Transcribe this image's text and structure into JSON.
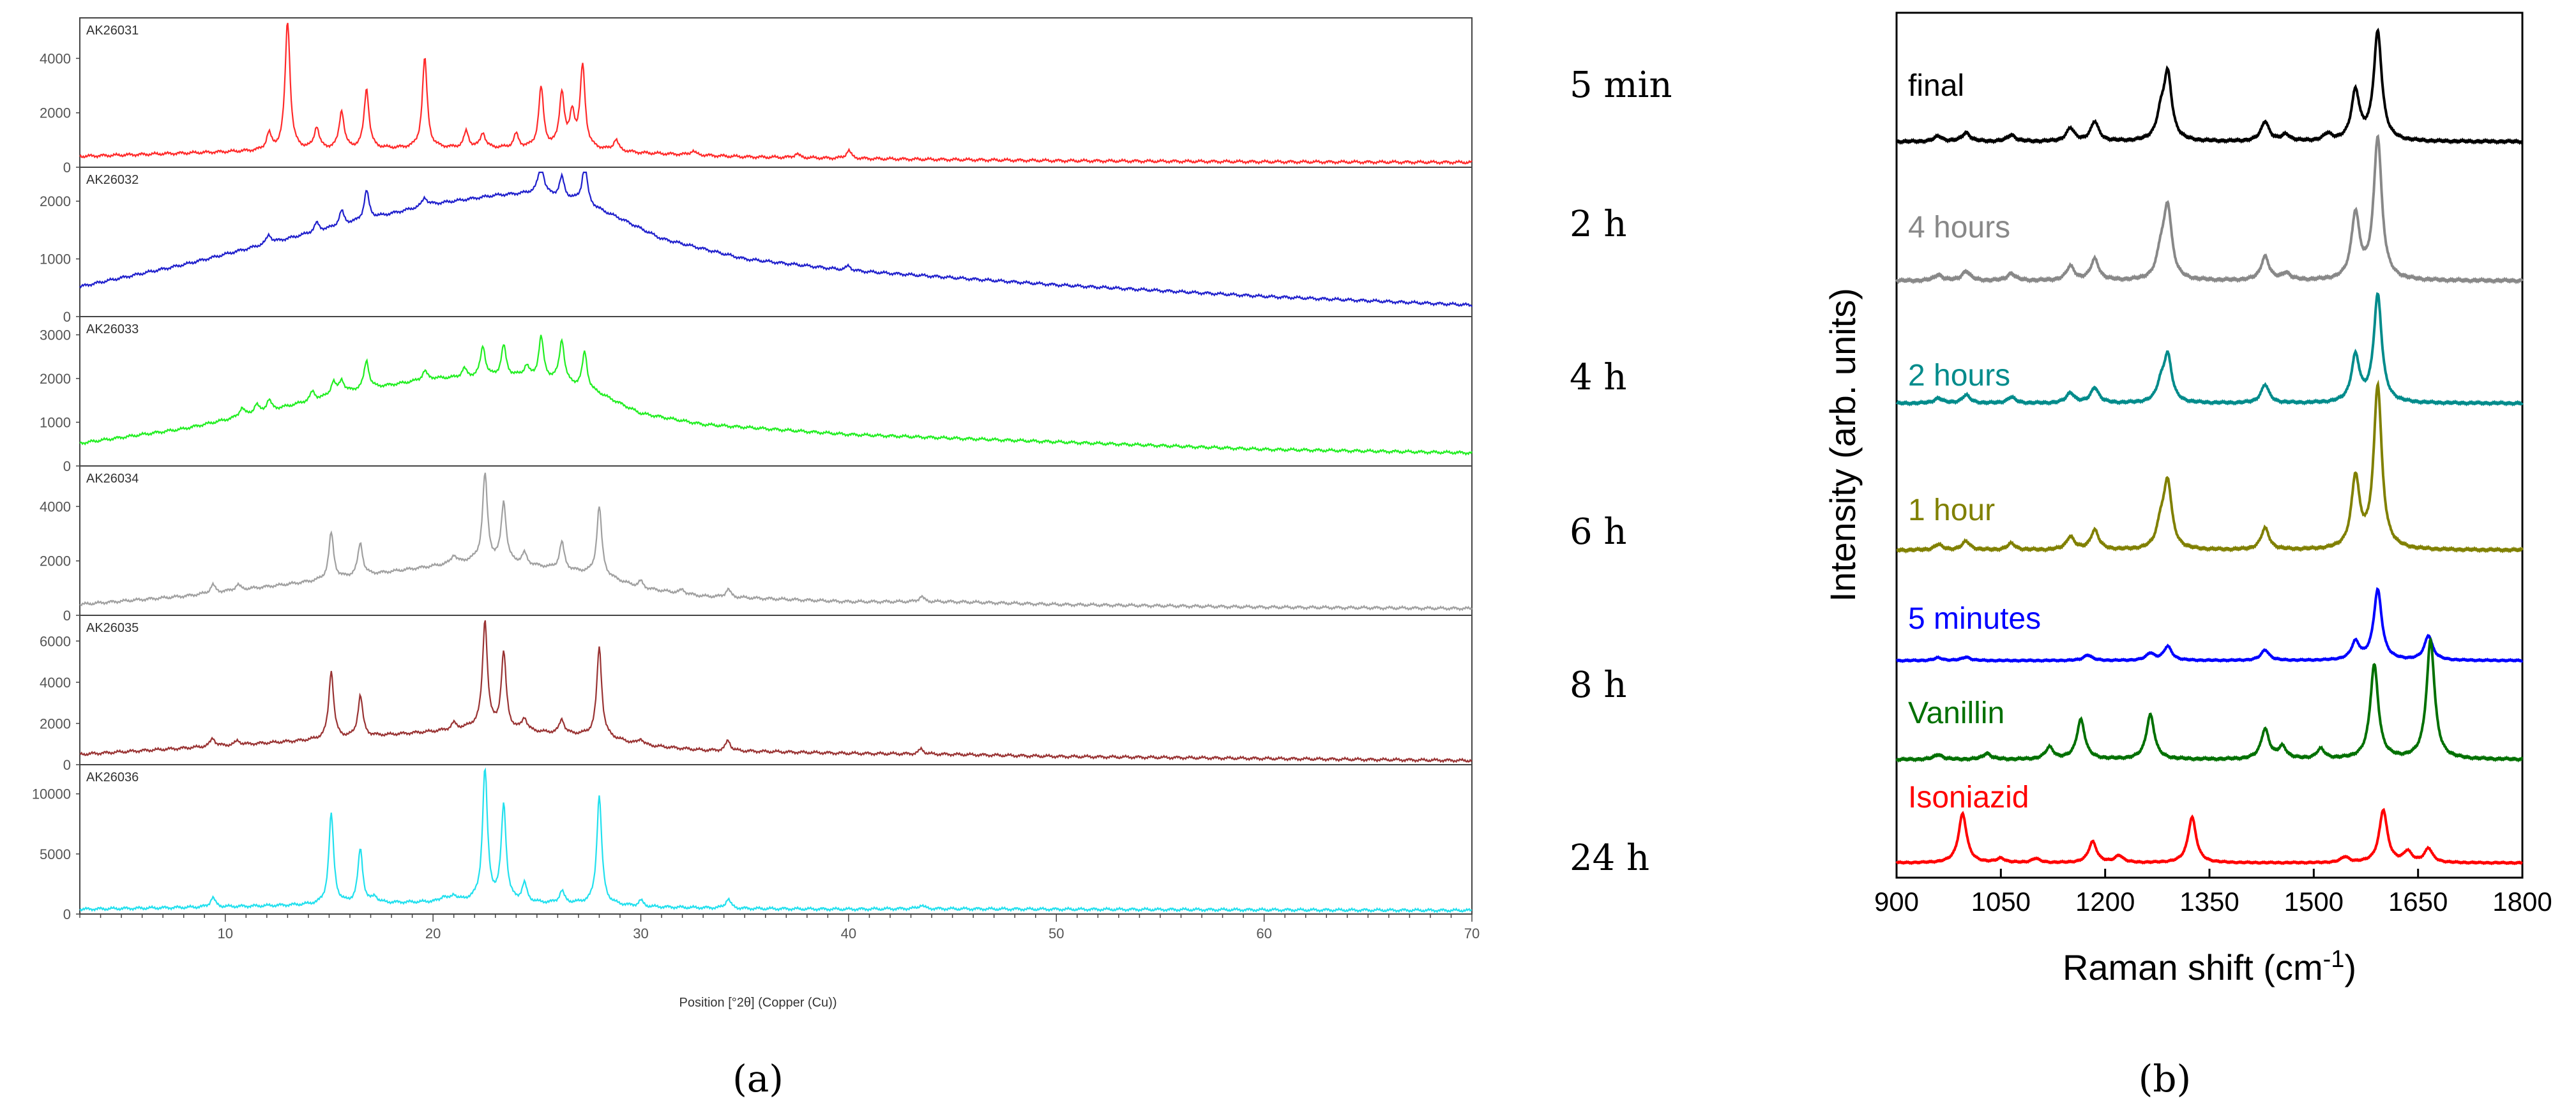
{
  "caption_a": "(a)",
  "caption_b": "(b)",
  "chart_data": [
    {
      "type": "line",
      "title": "",
      "xlabel": "Position [°2θ] (Copper (Cu))",
      "xlim": [
        3,
        70
      ],
      "xticks": [
        10,
        20,
        30,
        40,
        50,
        60,
        70
      ],
      "panels": [
        {
          "name": "AK26031",
          "time_label": "5 min",
          "color": "#ff2a2a",
          "ylim": [
            0,
            5300
          ],
          "yticks": [
            0,
            2000,
            4000
          ],
          "baseline": [
            [
              3,
              400
            ],
            [
              10,
              560
            ],
            [
              14,
              640
            ],
            [
              20,
              700
            ],
            [
              24,
              700
            ],
            [
              27,
              700
            ],
            [
              30,
              520
            ],
            [
              35,
              380
            ],
            [
              40,
              320
            ],
            [
              50,
              240
            ],
            [
              60,
              200
            ],
            [
              70,
              180
            ]
          ],
          "peaks": [
            [
              13.0,
              4800
            ],
            [
              19.6,
              3300
            ],
            [
              27.2,
              3000
            ],
            [
              25.2,
              2200
            ],
            [
              26.2,
              2000
            ],
            [
              16.8,
              2200
            ],
            [
              15.6,
              1400
            ],
            [
              14.4,
              800
            ],
            [
              12.1,
              600
            ],
            [
              21.6,
              600
            ],
            [
              22.4,
              550
            ],
            [
              26.7,
              1200
            ],
            [
              24.0,
              500
            ],
            [
              28.8,
              400
            ],
            [
              40.0,
              300
            ],
            [
              37.5,
              150
            ],
            [
              32.5,
              150
            ]
          ]
        },
        {
          "name": "AK26032",
          "time_label": "2 h",
          "color": "#2020cc",
          "ylim": [
            0,
            2500
          ],
          "yticks": [
            0,
            1000,
            2000
          ],
          "baseline": [
            [
              3,
              520
            ],
            [
              8,
              900
            ],
            [
              13,
              1350
            ],
            [
              17,
              1700
            ],
            [
              20,
              1950
            ],
            [
              23,
              2100
            ],
            [
              25,
              2150
            ],
            [
              27,
              2000
            ],
            [
              29,
              1700
            ],
            [
              31,
              1350
            ],
            [
              35,
              1000
            ],
            [
              40,
              800
            ],
            [
              50,
              550
            ],
            [
              60,
              350
            ],
            [
              70,
              200
            ]
          ],
          "peaks": [
            [
              16.8,
              500
            ],
            [
              25.2,
              550
            ],
            [
              27.3,
              700
            ],
            [
              26.2,
              350
            ],
            [
              15.6,
              250
            ],
            [
              19.6,
              150
            ],
            [
              14.4,
              150
            ],
            [
              12.1,
              150
            ],
            [
              40.0,
              80
            ]
          ]
        },
        {
          "name": "AK26033",
          "time_label": "4 h",
          "color": "#22ee22",
          "ylim": [
            0,
            3300
          ],
          "yticks": [
            0,
            1000,
            2000,
            3000
          ],
          "baseline": [
            [
              3,
              520
            ],
            [
              8,
              850
            ],
            [
              12,
              1250
            ],
            [
              16,
              1700
            ],
            [
              20,
              2000
            ],
            [
              24,
              2050
            ],
            [
              26,
              1950
            ],
            [
              28,
              1650
            ],
            [
              30,
              1200
            ],
            [
              33,
              950
            ],
            [
              40,
              720
            ],
            [
              50,
              550
            ],
            [
              60,
              380
            ],
            [
              70,
              300
            ]
          ],
          "peaks": [
            [
              16.8,
              650
            ],
            [
              22.4,
              700
            ],
            [
              23.4,
              700
            ],
            [
              25.2,
              950
            ],
            [
              26.2,
              950
            ],
            [
              27.3,
              850
            ],
            [
              15.6,
              300
            ],
            [
              15.2,
              300
            ],
            [
              14.2,
              200
            ],
            [
              12.1,
              250
            ],
            [
              11.5,
              200
            ],
            [
              10.8,
              200
            ],
            [
              19.6,
              200
            ],
            [
              21.5,
              200
            ],
            [
              24.5,
              250
            ]
          ]
        },
        {
          "name": "AK26034",
          "time_label": "6 h",
          "color": "#a0a0a0",
          "ylim": [
            0,
            5300
          ],
          "yticks": [
            0,
            2000,
            4000
          ],
          "baseline": [
            [
              3,
              400
            ],
            [
              8,
              700
            ],
            [
              12,
              1050
            ],
            [
              16,
              1400
            ],
            [
              20,
              1800
            ],
            [
              22,
              2000
            ],
            [
              24,
              1900
            ],
            [
              26,
              1700
            ],
            [
              28,
              1500
            ],
            [
              30,
              1000
            ],
            [
              33,
              700
            ],
            [
              40,
              500
            ],
            [
              45,
              500
            ],
            [
              50,
              400
            ],
            [
              60,
              300
            ],
            [
              70,
              250
            ]
          ],
          "peaks": [
            [
              22.5,
              3200
            ],
            [
              23.4,
              2200
            ],
            [
              28.0,
              2500
            ],
            [
              15.1,
              1700
            ],
            [
              16.5,
              1200
            ],
            [
              26.2,
              1000
            ],
            [
              24.4,
              400
            ],
            [
              21.0,
              300
            ],
            [
              9.4,
              300
            ],
            [
              10.6,
              200
            ],
            [
              34.2,
              300
            ],
            [
              43.5,
              200
            ],
            [
              30.0,
              250
            ],
            [
              32.0,
              150
            ]
          ]
        },
        {
          "name": "AK26035",
          "time_label": "8 h",
          "color": "#993333",
          "ylim": [
            0,
            7000
          ],
          "yticks": [
            0,
            2000,
            4000,
            6000
          ],
          "baseline": [
            [
              3,
              500
            ],
            [
              8,
              800
            ],
            [
              12,
              1050
            ],
            [
              16,
              1300
            ],
            [
              20,
              1600
            ],
            [
              22,
              1800
            ],
            [
              24,
              1650
            ],
            [
              26,
              1500
            ],
            [
              28,
              1400
            ],
            [
              30,
              950
            ],
            [
              33,
              700
            ],
            [
              40,
              550
            ],
            [
              45,
              500
            ],
            [
              50,
              400
            ],
            [
              60,
              300
            ],
            [
              70,
              200
            ]
          ],
          "peaks": [
            [
              22.5,
              5200
            ],
            [
              23.4,
              3700
            ],
            [
              28.0,
              4300
            ],
            [
              15.1,
              3300
            ],
            [
              16.5,
              2000
            ],
            [
              26.2,
              700
            ],
            [
              24.4,
              600
            ],
            [
              9.4,
              400
            ],
            [
              10.6,
              200
            ],
            [
              34.2,
              500
            ],
            [
              43.5,
              250
            ],
            [
              30.0,
              300
            ],
            [
              21.0,
              300
            ]
          ]
        },
        {
          "name": "AK26036",
          "time_label": "24 h",
          "color": "#22e0ee",
          "ylim": [
            0,
            12000
          ],
          "yticks": [
            0,
            5000,
            10000
          ],
          "baseline": [
            [
              3,
              400
            ],
            [
              10,
              600
            ],
            [
              15,
              800
            ],
            [
              20,
              1000
            ],
            [
              22,
              1100
            ],
            [
              25,
              900
            ],
            [
              28,
              850
            ],
            [
              30,
              600
            ],
            [
              35,
              450
            ],
            [
              40,
              400
            ],
            [
              43,
              450
            ],
            [
              50,
              400
            ],
            [
              60,
              350
            ],
            [
              70,
              300
            ]
          ],
          "peaks": [
            [
              22.5,
              11000
            ],
            [
              23.4,
              8000
            ],
            [
              28.0,
              9000
            ],
            [
              15.1,
              7500
            ],
            [
              16.5,
              4500
            ],
            [
              24.4,
              1500
            ],
            [
              26.2,
              1000
            ],
            [
              9.4,
              800
            ],
            [
              34.2,
              800
            ],
            [
              21.0,
              500
            ],
            [
              20.5,
              400
            ],
            [
              43.5,
              300
            ],
            [
              30.0,
              500
            ],
            [
              17.2,
              500
            ]
          ]
        }
      ]
    },
    {
      "type": "line",
      "title": "",
      "xlabel": "Raman shift (cm-1)",
      "xlabel_main": "Raman shift (cm",
      "xlabel_sup": "-1",
      "xlabel_end": ")",
      "ylabel": "Intensity (arb. units)",
      "xlim": [
        900,
        1800
      ],
      "xticks": [
        900,
        1050,
        1200,
        1350,
        1500,
        1650,
        1800
      ],
      "series": [
        {
          "name": "final",
          "color": "#000000",
          "peaks": [
            [
              1592,
              1.0
            ],
            [
              1560,
              0.45
            ],
            [
              1290,
              0.6
            ],
            [
              1430,
              0.18
            ],
            [
              1185,
              0.18
            ],
            [
              1150,
              0.12
            ],
            [
              1000,
              0.08
            ],
            [
              960,
              0.05
            ],
            [
              1065,
              0.06
            ],
            [
              1280,
              0.2
            ],
            [
              1460,
              0.06
            ],
            [
              1520,
              0.06
            ]
          ]
        },
        {
          "name": "4 hours",
          "color": "#888888",
          "peaks": [
            [
              1592,
              1.2
            ],
            [
              1560,
              0.55
            ],
            [
              1290,
              0.6
            ],
            [
              1430,
              0.2
            ],
            [
              1185,
              0.18
            ],
            [
              1150,
              0.12
            ],
            [
              1000,
              0.08
            ],
            [
              960,
              0.05
            ],
            [
              1065,
              0.06
            ],
            [
              1280,
              0.2
            ],
            [
              1460,
              0.06
            ]
          ]
        },
        {
          "name": "2 hours",
          "color": "#008b8b",
          "peaks": [
            [
              1592,
              1.05
            ],
            [
              1560,
              0.45
            ],
            [
              1290,
              0.45
            ],
            [
              1430,
              0.18
            ],
            [
              1185,
              0.15
            ],
            [
              1150,
              0.1
            ],
            [
              1000,
              0.08
            ],
            [
              960,
              0.05
            ],
            [
              1065,
              0.06
            ],
            [
              1280,
              0.15
            ]
          ]
        },
        {
          "name": "1 hour",
          "color": "#808000",
          "peaks": [
            [
              1592,
              1.5
            ],
            [
              1560,
              0.65
            ],
            [
              1290,
              0.6
            ],
            [
              1430,
              0.2
            ],
            [
              1185,
              0.18
            ],
            [
              1150,
              0.12
            ],
            [
              1000,
              0.08
            ],
            [
              960,
              0.05
            ],
            [
              1065,
              0.06
            ],
            [
              1280,
              0.2
            ]
          ]
        },
        {
          "name": "5 minutes",
          "color": "#0000ff",
          "peaks": [
            [
              1592,
              1.0
            ],
            [
              1665,
              0.35
            ],
            [
              1560,
              0.25
            ],
            [
              1290,
              0.2
            ],
            [
              1430,
              0.15
            ],
            [
              1265,
              0.1
            ],
            [
              1175,
              0.08
            ],
            [
              1000,
              0.05
            ],
            [
              960,
              0.04
            ]
          ]
        },
        {
          "name": "Vanillin",
          "color": "#007000",
          "peaks": [
            [
              1668,
              1.2
            ],
            [
              1587,
              0.95
            ],
            [
              1265,
              0.45
            ],
            [
              1165,
              0.4
            ],
            [
              1430,
              0.3
            ],
            [
              1455,
              0.12
            ],
            [
              1510,
              0.1
            ],
            [
              1120,
              0.12
            ],
            [
              1030,
              0.06
            ],
            [
              960,
              0.05
            ]
          ]
        },
        {
          "name": "Isoniazid",
          "color": "#ff0000",
          "peaks": [
            [
              995,
              0.7
            ],
            [
              1325,
              0.65
            ],
            [
              1600,
              0.75
            ],
            [
              1182,
              0.3
            ],
            [
              1220,
              0.1
            ],
            [
              1665,
              0.2
            ],
            [
              1635,
              0.15
            ],
            [
              1050,
              0.06
            ],
            [
              1100,
              0.06
            ],
            [
              1545,
              0.08
            ]
          ]
        }
      ]
    }
  ]
}
